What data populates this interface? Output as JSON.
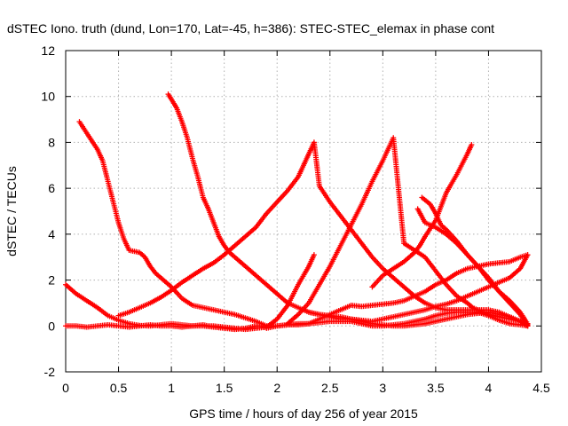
{
  "chart_data": {
    "type": "scatter",
    "title": "dSTEC Iono. truth (dund, Lon=170, Lat=-45, h=386): STEC-STEC_elemax in phase cont",
    "xlabel": "GPS time / hours of day 256 of year 2015",
    "ylabel": "dSTEC  / TECUs",
    "xlim": [
      0,
      4.5
    ],
    "ylim": [
      -2,
      12
    ],
    "xticks": [
      0,
      0.5,
      1,
      1.5,
      2,
      2.5,
      3,
      3.5,
      4,
      4.5
    ],
    "xtick_labels": [
      "0",
      "0.5",
      "1",
      "1.5",
      "2",
      "2.5",
      "3",
      "3.5",
      "4",
      "4.5"
    ],
    "yticks": [
      -2,
      0,
      2,
      4,
      6,
      8,
      10,
      12
    ],
    "ytick_labels": [
      "-2",
      "0",
      "2",
      "4",
      "6",
      "8",
      "10",
      "12"
    ],
    "grid": true,
    "marker": "plus",
    "color": "#ff0000",
    "series": [
      {
        "x": [
          0,
          0.05,
          0.1,
          0.2,
          0.3,
          0.4,
          0.5,
          0.6,
          0.7,
          0.8,
          0.9,
          1.0,
          1.1,
          1.2,
          1.3,
          1.4,
          1.5,
          1.6,
          1.7,
          1.8,
          1.85,
          1.9,
          2.0,
          2.1,
          2.2,
          2.3,
          2.4,
          2.5,
          2.6,
          2.7,
          2.8,
          2.9,
          3.0,
          3.1,
          3.2,
          3.3,
          3.4,
          3.5,
          3.6,
          3.7,
          3.8,
          3.9,
          4.0,
          4.1,
          4.2,
          4.3,
          4.37
        ],
        "y": [
          0.0,
          0.0,
          0.0,
          -0.05,
          0.0,
          0.05,
          0.0,
          -0.05,
          0.0,
          0.05,
          0.0,
          0.0,
          -0.05,
          0.0,
          0.0,
          -0.05,
          -0.1,
          -0.15,
          -0.1,
          0.0,
          0.0,
          -0.1,
          0.0,
          0.05,
          0.05,
          0.1,
          0.3,
          0.5,
          0.7,
          0.9,
          0.85,
          0.9,
          0.95,
          1.0,
          1.1,
          1.3,
          1.5,
          1.8,
          2.0,
          2.3,
          2.5,
          2.6,
          2.7,
          2.75,
          2.8,
          3.0,
          3.1
        ]
      },
      {
        "x": [
          0,
          0.05,
          0.1,
          0.2,
          0.3,
          0.4,
          0.5,
          0.6,
          0.7,
          0.8,
          0.9,
          1.0,
          1.1,
          1.2,
          1.3,
          1.35,
          1.4,
          1.5,
          1.6,
          1.7,
          1.8,
          1.9,
          2.0,
          2.1,
          2.2,
          2.3,
          2.35
        ],
        "y": [
          1.8,
          1.6,
          1.4,
          1.1,
          0.8,
          0.45,
          0.25,
          0.1,
          0.02,
          0.0,
          0.05,
          0.1,
          0.05,
          0.0,
          0.05,
          0.0,
          0.0,
          -0.05,
          -0.1,
          -0.15,
          -0.1,
          -0.05,
          0.3,
          0.9,
          1.8,
          2.6,
          3.1
        ]
      },
      {
        "x": [
          0.13,
          0.2,
          0.3,
          0.35,
          0.4,
          0.45,
          0.5,
          0.55,
          0.6,
          0.7,
          0.75,
          0.8,
          0.85,
          0.9,
          1.0,
          1.1,
          1.2,
          1.3,
          1.4,
          1.5,
          1.6,
          1.7,
          1.8,
          1.9,
          2.0,
          2.1,
          2.2,
          2.3,
          2.4,
          2.5,
          2.6,
          2.7,
          2.8,
          2.9,
          3.0,
          3.1,
          3.2,
          3.3,
          3.4,
          3.5,
          3.6,
          3.7,
          3.8,
          3.9,
          4.0,
          4.1,
          4.2,
          4.3,
          4.37
        ],
        "y": [
          8.9,
          8.4,
          7.7,
          7.2,
          6.3,
          5.4,
          4.5,
          3.8,
          3.3,
          3.2,
          3.0,
          2.6,
          2.3,
          2.1,
          1.7,
          1.2,
          0.9,
          0.8,
          0.7,
          0.6,
          0.5,
          0.35,
          0.2,
          0.0,
          0.0,
          0.05,
          0.1,
          0.1,
          0.15,
          0.2,
          0.2,
          0.2,
          0.1,
          0.0,
          0.0,
          0.05,
          0.1,
          0.2,
          0.3,
          0.45,
          0.55,
          0.6,
          0.6,
          0.6,
          0.45,
          0.25,
          0.1,
          0.05,
          0.0
        ]
      },
      {
        "x": [
          0.97,
          1.05,
          1.1,
          1.15,
          1.2,
          1.25,
          1.3,
          1.35,
          1.4,
          1.45,
          1.5,
          1.55,
          1.6,
          1.7,
          1.8,
          1.9,
          2.0,
          2.1,
          2.2,
          2.3,
          2.4,
          2.5,
          2.6,
          2.7,
          2.8,
          2.9,
          3.0,
          3.1,
          3.2,
          3.3,
          3.4,
          3.5,
          3.6,
          3.7,
          3.8,
          3.9,
          4.0,
          4.1,
          4.2,
          4.3,
          4.37
        ],
        "y": [
          10.1,
          9.5,
          8.9,
          8.2,
          7.3,
          6.5,
          5.6,
          5.1,
          4.5,
          3.9,
          3.5,
          3.2,
          3.0,
          2.6,
          2.2,
          1.8,
          1.4,
          1.0,
          0.8,
          0.6,
          0.5,
          0.4,
          0.3,
          0.3,
          0.25,
          0.2,
          0.3,
          0.4,
          0.5,
          0.6,
          0.7,
          0.85,
          0.95,
          1.1,
          1.3,
          1.5,
          1.7,
          1.9,
          2.1,
          2.5,
          3.1
        ]
      },
      {
        "x": [
          0.5,
          0.6,
          0.7,
          0.8,
          0.9,
          1.0,
          1.1,
          1.2,
          1.3,
          1.4,
          1.5,
          1.6,
          1.7,
          1.8,
          1.9,
          2.0,
          2.1,
          2.2,
          2.25,
          2.3,
          2.35,
          2.4,
          2.5,
          2.6,
          2.7,
          2.8,
          2.9,
          3.0,
          3.1,
          3.2,
          3.3,
          3.4,
          3.5,
          3.6,
          3.7,
          3.8,
          3.9,
          4.0,
          4.1,
          4.2,
          4.3,
          4.37
        ],
        "y": [
          0.45,
          0.6,
          0.8,
          1.0,
          1.25,
          1.55,
          1.9,
          2.2,
          2.5,
          2.75,
          3.1,
          3.5,
          3.9,
          4.3,
          4.9,
          5.4,
          5.9,
          6.5,
          7.0,
          7.5,
          8.0,
          6.1,
          5.4,
          4.8,
          4.2,
          3.6,
          3.0,
          2.5,
          2.1,
          1.7,
          1.3,
          1.0,
          0.8,
          0.7,
          0.7,
          0.7,
          0.7,
          0.7,
          0.6,
          0.4,
          0.2,
          0.05
        ]
      },
      {
        "x": [
          2.1,
          2.2,
          2.3,
          2.4,
          2.5,
          2.6,
          2.7,
          2.8,
          2.9,
          3.0,
          3.1,
          3.2,
          3.3,
          3.4,
          3.5,
          3.6,
          3.7,
          3.8,
          3.85,
          3.9,
          4.0,
          4.1,
          4.2,
          4.3,
          4.37
        ],
        "y": [
          0.1,
          0.5,
          1.0,
          1.8,
          2.6,
          3.5,
          4.4,
          5.3,
          6.3,
          7.2,
          8.2,
          3.6,
          3.3,
          3.0,
          2.4,
          1.8,
          1.3,
          1.0,
          0.8,
          0.7,
          0.5,
          0.4,
          0.3,
          0.2,
          0.0
        ]
      },
      {
        "x": [
          2.9,
          3.0,
          3.1,
          3.2,
          3.3,
          3.35,
          3.4,
          3.5,
          3.55,
          3.6,
          3.7,
          3.8,
          3.84
        ],
        "y": [
          1.7,
          2.2,
          2.5,
          2.8,
          3.2,
          3.5,
          3.9,
          4.6,
          5.2,
          5.8,
          6.6,
          7.5,
          7.9
        ]
      },
      {
        "x": [
          3.33,
          3.4,
          3.5,
          3.6,
          3.7,
          3.8,
          3.9,
          4.0,
          4.1,
          4.2,
          4.3,
          4.37
        ],
        "y": [
          5.1,
          4.5,
          4.3,
          4.0,
          3.6,
          3.1,
          2.6,
          2.1,
          1.5,
          1.0,
          0.5,
          0.0
        ]
      },
      {
        "x": [
          3.37,
          3.45,
          3.5,
          3.55,
          3.6,
          3.7,
          3.8,
          3.9,
          4.0,
          4.1,
          4.2,
          4.3,
          4.37
        ],
        "y": [
          5.6,
          5.3,
          4.9,
          4.4,
          4.2,
          3.7,
          3.1,
          2.6,
          2.0,
          1.5,
          1.1,
          0.6,
          0.1
        ]
      },
      {
        "x": [
          2.25,
          2.3,
          2.4,
          2.5,
          2.6,
          2.7,
          2.8,
          2.9,
          3.0,
          3.1,
          3.2,
          3.3,
          3.4,
          3.5,
          3.6,
          3.7,
          3.8,
          3.9,
          4.0,
          4.1,
          4.2,
          4.3,
          4.37
        ],
        "y": [
          0.7,
          0.6,
          0.5,
          0.45,
          0.4,
          0.3,
          0.2,
          0.1,
          0.05,
          0.0,
          0.0,
          0.05,
          0.1,
          0.2,
          0.3,
          0.4,
          0.5,
          0.55,
          0.6,
          0.5,
          0.4,
          0.2,
          0.0
        ]
      }
    ]
  }
}
